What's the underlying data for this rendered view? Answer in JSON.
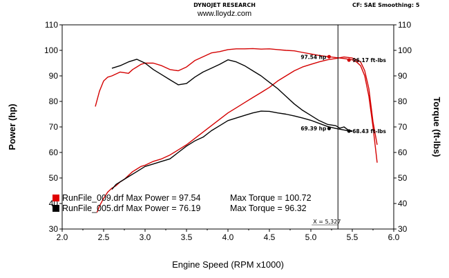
{
  "header": {
    "title": "DYNOJET RESEARCH",
    "url": "www.lloydz.com",
    "settings": "CF: SAE  Smoothing: 5"
  },
  "chart_data": {
    "type": "line",
    "xlabel": "Engine Speed (RPM x1000)",
    "ylabel_left": "Power (hp)",
    "ylabel_right": "Torque (ft-lbs)",
    "xlim": [
      2.0,
      6.0
    ],
    "ylim": [
      30,
      110
    ],
    "x_ticks": [
      "2.0",
      "2.5",
      "3.0",
      "3.5",
      "4.0",
      "4.5",
      "5.0",
      "5.5",
      "6.0"
    ],
    "y_ticks_left": [
      "110",
      "100",
      "90",
      "80",
      "70",
      "60",
      "50",
      "40",
      "30"
    ],
    "y_ticks_right": [
      "110",
      "100",
      "90",
      "80",
      "70",
      "60",
      "50",
      "40",
      "30"
    ],
    "grid": false,
    "cursor": {
      "x": 5.327,
      "label": "X = 5,327"
    },
    "annotations": [
      {
        "text": "97.54 hp",
        "x": 5.22,
        "y": 97.5,
        "color": "#d00000"
      },
      {
        "text": "96.17 ft-lbs",
        "x": 5.46,
        "y": 96.2,
        "color": "#d00000"
      },
      {
        "text": "69.39 hp",
        "x": 5.22,
        "y": 69.4,
        "color": "#000000"
      },
      {
        "text": "68.43 ft-lbs",
        "x": 5.46,
        "y": 68.4,
        "color": "#000000"
      }
    ],
    "legend": [
      {
        "label": "RunFile_009.drf Max Power = 97.54",
        "torque": "Max Torque = 100.72",
        "color": "#e00000"
      },
      {
        "label": "RunFile_005.drf Max Power = 76.19",
        "torque": "Max Torque = 96.32",
        "color": "#000000"
      }
    ],
    "series": [
      {
        "name": "RunFile_009.drf",
        "metric": "power",
        "color": "#d40000",
        "x": [
          2.42,
          2.45,
          2.5,
          2.55,
          2.6,
          2.65,
          2.7,
          2.75,
          2.8,
          2.85,
          2.9,
          2.95,
          3.0,
          3.1,
          3.2,
          3.3,
          3.4,
          3.5,
          3.6,
          3.7,
          3.8,
          3.9,
          4.0,
          4.1,
          4.2,
          4.3,
          4.4,
          4.5,
          4.6,
          4.7,
          4.8,
          4.9,
          5.0,
          5.1,
          5.2,
          5.3,
          5.4,
          5.5,
          5.6,
          5.65,
          5.7,
          5.75,
          5.8
        ],
        "y": [
          36.5,
          39,
          42,
          44.5,
          46,
          47,
          48.5,
          49.5,
          51,
          52.5,
          53.5,
          54.5,
          55,
          56.5,
          57.5,
          59,
          61,
          63,
          65.5,
          68,
          70.5,
          73,
          75.5,
          77.5,
          79.5,
          81.5,
          83.5,
          85.5,
          88,
          90,
          92,
          93.5,
          94.5,
          95.5,
          96.3,
          96.8,
          97.4,
          97.0,
          95.5,
          92,
          85,
          72,
          63
        ]
      },
      {
        "name": "RunFile_009.drf",
        "metric": "torque",
        "color": "#d40000",
        "x": [
          2.4,
          2.45,
          2.5,
          2.55,
          2.6,
          2.7,
          2.8,
          2.85,
          2.9,
          2.95,
          3.0,
          3.1,
          3.2,
          3.3,
          3.4,
          3.5,
          3.6,
          3.7,
          3.8,
          3.9,
          4.0,
          4.1,
          4.2,
          4.3,
          4.4,
          4.5,
          4.6,
          4.7,
          4.8,
          4.9,
          5.0,
          5.1,
          5.2,
          5.3,
          5.4,
          5.5,
          5.55,
          5.6,
          5.65,
          5.7,
          5.75,
          5.8
        ],
        "y": [
          78,
          84,
          88,
          89.5,
          90,
          91.5,
          91,
          92.5,
          93.5,
          94.5,
          95,
          95,
          94,
          92.5,
          92,
          93.5,
          96,
          97.5,
          99,
          99.5,
          100.3,
          100.6,
          100.6,
          100.7,
          100.5,
          100.6,
          100.3,
          100,
          99.8,
          99.2,
          98.6,
          98,
          97.6,
          97.2,
          96.8,
          96.3,
          95.5,
          94,
          90,
          82,
          70,
          56
        ]
      },
      {
        "name": "RunFile_005.drf",
        "metric": "power",
        "color": "#000000",
        "x": [
          2.6,
          2.65,
          2.7,
          2.8,
          2.9,
          3.0,
          3.1,
          3.2,
          3.3,
          3.4,
          3.5,
          3.6,
          3.7,
          3.8,
          3.9,
          4.0,
          4.1,
          4.2,
          4.3,
          4.4,
          4.5,
          4.6,
          4.7,
          4.8,
          4.9,
          5.0,
          5.1,
          5.2,
          5.3,
          5.4,
          5.45,
          5.5
        ],
        "y": [
          45.5,
          47.5,
          48.5,
          50.5,
          52.5,
          54.5,
          55.5,
          56.5,
          57.5,
          60,
          62.5,
          64.5,
          66,
          68.5,
          70.5,
          72.5,
          73.5,
          74.5,
          75.5,
          76.2,
          76.1,
          75.5,
          75,
          74.3,
          73.5,
          72.6,
          71.4,
          70.2,
          69.4,
          68.8,
          68.5,
          68.2
        ]
      },
      {
        "name": "RunFile_005.drf",
        "metric": "torque",
        "color": "#000000",
        "x": [
          2.6,
          2.7,
          2.8,
          2.9,
          3.0,
          3.1,
          3.2,
          3.3,
          3.4,
          3.5,
          3.6,
          3.7,
          3.8,
          3.9,
          4.0,
          4.1,
          4.2,
          4.3,
          4.4,
          4.5,
          4.6,
          4.7,
          4.8,
          4.9,
          5.0,
          5.1,
          5.2,
          5.3,
          5.35,
          5.4,
          5.45,
          5.5
        ],
        "y": [
          93,
          94,
          95.5,
          96.5,
          95,
          92.5,
          90.5,
          88.5,
          86.5,
          87,
          89.5,
          91.5,
          93,
          94.5,
          96.3,
          95.5,
          94,
          92,
          90,
          87.5,
          85,
          82,
          79,
          76.5,
          74.5,
          72.5,
          71,
          70.5,
          69.5,
          70,
          68.8,
          68.4
        ]
      }
    ]
  }
}
